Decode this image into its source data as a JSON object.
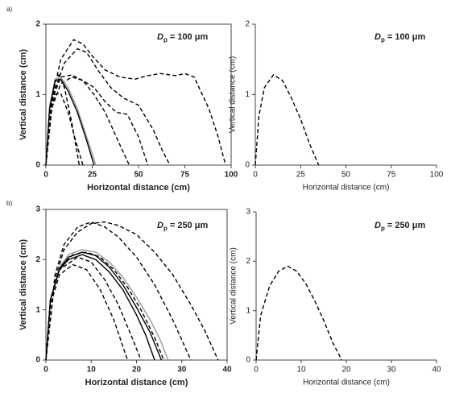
{
  "chart_data": [
    {
      "type": "line",
      "panel_label": "a)",
      "xlabel": "Horizontal distance (cm)",
      "ylabel": "Vertical distance (cm)",
      "annotation": {
        "symbol": "D",
        "subscript": "p",
        "text": "= 100 μm"
      },
      "xlim": [
        0,
        100
      ],
      "ylim": [
        0,
        2
      ],
      "xticks": [
        0,
        25,
        50,
        75,
        100
      ],
      "yticks": [
        0,
        1,
        2
      ],
      "frame": true,
      "bold": true,
      "series": [
        {
          "color": "#000000",
          "dash": true,
          "x": [
            0,
            3,
            8,
            15,
            20,
            25,
            32,
            40,
            48,
            55,
            62,
            70,
            75,
            80,
            88,
            93,
            97
          ],
          "values": [
            0,
            0.9,
            1.5,
            1.78,
            1.72,
            1.55,
            1.35,
            1.25,
            1.22,
            1.27,
            1.3,
            1.27,
            1.3,
            1.25,
            0.8,
            0.4,
            0
          ]
        },
        {
          "color": "#000000",
          "dash": true,
          "x": [
            0,
            4,
            10,
            17,
            22,
            28,
            35,
            42,
            50,
            58,
            63,
            67
          ],
          "values": [
            0,
            1.0,
            1.45,
            1.65,
            1.6,
            1.35,
            1.1,
            0.95,
            0.85,
            0.5,
            0.2,
            0
          ]
        },
        {
          "color": "#000000",
          "dash": true,
          "x": [
            0,
            3,
            8,
            14,
            20,
            26,
            32,
            38,
            44,
            50,
            55
          ],
          "values": [
            0,
            0.9,
            1.25,
            1.28,
            1.2,
            1.1,
            0.9,
            0.75,
            0.72,
            0.4,
            0
          ]
        },
        {
          "color": "#000000",
          "dash": true,
          "x": [
            0,
            3,
            8,
            14,
            20,
            26,
            32,
            38,
            45
          ],
          "values": [
            0,
            0.8,
            1.15,
            1.25,
            1.2,
            1.0,
            0.75,
            0.4,
            0
          ]
        },
        {
          "color": "#000000",
          "dash": true,
          "x": [
            0,
            2,
            5,
            7,
            10,
            14,
            18
          ],
          "values": [
            0,
            0.8,
            1.2,
            1.28,
            1.1,
            0.6,
            0
          ]
        },
        {
          "color": "#000000",
          "dash": true,
          "x": [
            0,
            2,
            5,
            8,
            12,
            16,
            20
          ],
          "values": [
            0,
            0.7,
            1.0,
            1.02,
            0.75,
            0.35,
            0
          ]
        },
        {
          "color": "#999999",
          "dash": false,
          "x": [
            0,
            2,
            5,
            8,
            12,
            17,
            22,
            27
          ],
          "values": [
            0,
            0.85,
            1.22,
            1.25,
            1.1,
            0.8,
            0.4,
            0
          ]
        },
        {
          "color": "#000000",
          "dash": false,
          "x": [
            0,
            2,
            5,
            8,
            12,
            17,
            22,
            26
          ],
          "values": [
            0,
            0.8,
            1.2,
            1.22,
            1.05,
            0.75,
            0.35,
            0
          ]
        }
      ]
    },
    {
      "type": "line",
      "xlabel": "Horizontal distance (cm)",
      "ylabel": "Vertical distance (cm)",
      "annotation": {
        "symbol": "D",
        "subscript": "p",
        "text": "= 100 μm"
      },
      "xlim": [
        0,
        100
      ],
      "ylim": [
        0,
        2
      ],
      "xticks": [
        0,
        25,
        50,
        75,
        100
      ],
      "yticks": [
        0,
        1,
        2
      ],
      "frame": false,
      "bold": false,
      "series": [
        {
          "color": "#000000",
          "dash": true,
          "x": [
            0,
            2,
            5,
            10,
            15,
            20,
            25,
            30,
            35
          ],
          "values": [
            0,
            0.7,
            1.1,
            1.28,
            1.2,
            0.95,
            0.65,
            0.3,
            0
          ]
        }
      ]
    },
    {
      "type": "line",
      "panel_label": "b)",
      "xlabel": "Horizontal distance (cm)",
      "ylabel": "Vertical distance (cm)",
      "annotation": {
        "symbol": "D",
        "subscript": "p",
        "text": "= 250 μm"
      },
      "xlim": [
        0,
        40
      ],
      "ylim": [
        0,
        3
      ],
      "xticks": [
        0,
        10,
        20,
        30,
        40
      ],
      "yticks": [
        0,
        1,
        2,
        3
      ],
      "frame": true,
      "bold": true,
      "series": [
        {
          "color": "#000000",
          "dash": true,
          "x": [
            0,
            2,
            4,
            7,
            10,
            13,
            16,
            20,
            24,
            28,
            32,
            35,
            38
          ],
          "values": [
            0,
            1.6,
            2.2,
            2.55,
            2.72,
            2.75,
            2.68,
            2.5,
            2.15,
            1.7,
            1.1,
            0.6,
            0
          ]
        },
        {
          "color": "#000000",
          "dash": true,
          "x": [
            0,
            2,
            4,
            7,
            10,
            13,
            16,
            20,
            24,
            28,
            32
          ],
          "values": [
            0,
            1.7,
            2.3,
            2.65,
            2.75,
            2.65,
            2.45,
            2.05,
            1.5,
            0.8,
            0
          ]
        },
        {
          "color": "#000000",
          "dash": true,
          "x": [
            0,
            1,
            3,
            6,
            9,
            12,
            15,
            18
          ],
          "values": [
            0,
            1.1,
            1.7,
            1.9,
            1.8,
            1.4,
            0.8,
            0
          ]
        },
        {
          "color": "#000000",
          "dash": true,
          "x": [
            0,
            1,
            3,
            7,
            10,
            13,
            16,
            19,
            21
          ],
          "values": [
            0,
            1.2,
            1.8,
            2.05,
            1.95,
            1.6,
            1.1,
            0.45,
            0
          ]
        },
        {
          "color": "#000000",
          "dash": true,
          "x": [
            0,
            1,
            3,
            6,
            9,
            12,
            15,
            18,
            21,
            24,
            26
          ],
          "values": [
            0,
            1.2,
            1.85,
            2.1,
            2.15,
            2.05,
            1.8,
            1.45,
            1.0,
            0.45,
            0
          ]
        },
        {
          "color": "#999999",
          "dash": false,
          "x": [
            0,
            1,
            3,
            5,
            8,
            11,
            14,
            17,
            20,
            23,
            25,
            27
          ],
          "values": [
            0,
            1.2,
            1.85,
            2.1,
            2.2,
            2.15,
            1.95,
            1.65,
            1.25,
            0.8,
            0.45,
            0
          ]
        },
        {
          "color": "#000000",
          "dash": false,
          "x": [
            0,
            1,
            3,
            5,
            8,
            11,
            14,
            17,
            20,
            22,
            24
          ],
          "values": [
            0,
            1.2,
            1.8,
            2.0,
            2.1,
            2.0,
            1.75,
            1.4,
            0.9,
            0.5,
            0
          ]
        },
        {
          "color": "#000000",
          "dash": false,
          "x": [
            0,
            1,
            3,
            5,
            8,
            11,
            14,
            17,
            20,
            23,
            25.5
          ],
          "values": [
            0,
            1.2,
            1.82,
            2.05,
            2.15,
            2.08,
            1.85,
            1.5,
            1.05,
            0.55,
            0
          ]
        }
      ]
    },
    {
      "type": "line",
      "xlabel": "Horizontal distance (cm)",
      "ylabel": "Vertical distance (cm)",
      "annotation": {
        "symbol": "D",
        "subscript": "p",
        "text": "= 250 μm"
      },
      "xlim": [
        0,
        40
      ],
      "ylim": [
        0,
        3
      ],
      "xticks": [
        0,
        10,
        20,
        30,
        40
      ],
      "yticks": [
        0,
        1,
        2,
        3
      ],
      "frame": false,
      "bold": false,
      "series": [
        {
          "color": "#000000",
          "dash": true,
          "x": [
            0,
            1,
            3,
            5,
            7,
            9,
            11,
            13,
            15,
            17,
            19
          ],
          "values": [
            0,
            0.9,
            1.5,
            1.8,
            1.9,
            1.8,
            1.55,
            1.2,
            0.8,
            0.35,
            0
          ]
        }
      ]
    }
  ]
}
